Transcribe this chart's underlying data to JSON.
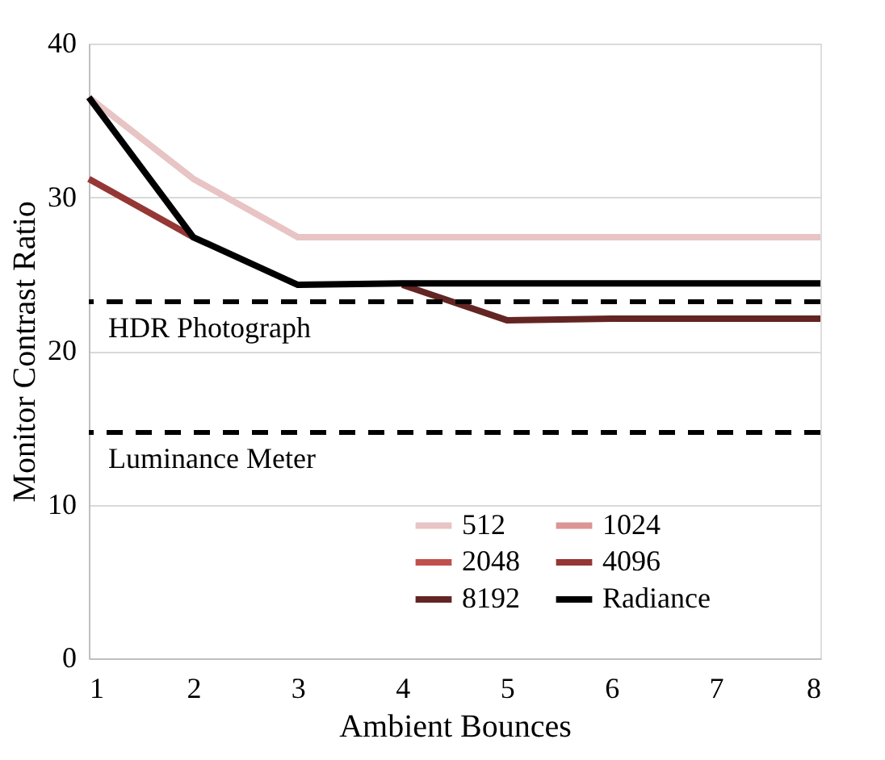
{
  "chart_data": {
    "type": "line",
    "xlabel": "Ambient Bounces",
    "ylabel": "Monitor Contrast Ratio",
    "x": [
      1,
      2,
      3,
      4,
      5,
      6,
      7,
      8
    ],
    "series": [
      {
        "name": "512",
        "color": "#e8c4c4",
        "values": [
          36.5,
          31.2,
          27.4,
          27.4,
          27.4,
          27.4,
          27.4,
          27.4
        ]
      },
      {
        "name": "1024",
        "color": "#dc9494",
        "values": [
          null,
          null,
          null,
          null,
          null,
          null,
          null,
          null
        ]
      },
      {
        "name": "2048",
        "color": "#c0504d",
        "values": [
          null,
          null,
          null,
          null,
          null,
          null,
          null,
          null
        ]
      },
      {
        "name": "4096",
        "color": "#953735",
        "values": [
          31.2,
          27.4,
          null,
          null,
          null,
          null,
          null,
          null
        ]
      },
      {
        "name": "8192",
        "color": "#632523",
        "values": [
          null,
          null,
          null,
          24.3,
          22.0,
          22.1,
          22.1,
          22.1
        ]
      },
      {
        "name": "Radiance",
        "color": "#000000",
        "values": [
          36.5,
          27.4,
          24.3,
          24.4,
          24.4,
          24.4,
          24.4,
          24.4
        ]
      }
    ],
    "ref_lines": [
      {
        "axis": "y",
        "value": 23.2,
        "label": "HDR Photograph",
        "color": "#000000",
        "line_style": "dashed"
      },
      {
        "axis": "y",
        "value": 14.7,
        "label": "Luminance Meter",
        "color": "#000000",
        "line_style": "dashed"
      }
    ],
    "xlim": [
      1,
      8
    ],
    "xticks": [
      1,
      2,
      3,
      4,
      5,
      6,
      7,
      8
    ],
    "ylim": [
      0,
      40
    ],
    "yticks": [
      0,
      10,
      20,
      30,
      40
    ],
    "grid": "y",
    "legend": "bottom right",
    "marker": "none",
    "line_style": "solid"
  }
}
